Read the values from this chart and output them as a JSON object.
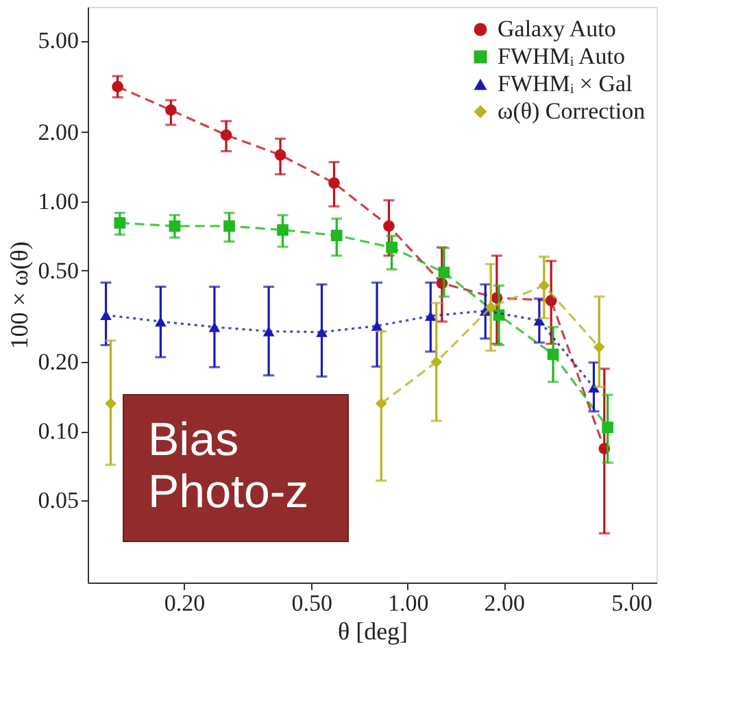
{
  "chart_data": {
    "type": "line",
    "xlabel": "θ [deg]",
    "ylabel": "100 × ω(θ)",
    "log": "xy",
    "grid": false,
    "legend": "top right",
    "xlim": [
      0.1,
      6
    ],
    "xticks": [
      {
        "value": 0.2,
        "label": "0.20"
      },
      {
        "value": 0.5,
        "label": "0.50"
      },
      {
        "value": 1,
        "label": "1.00"
      },
      {
        "value": 2,
        "label": "2.00"
      },
      {
        "value": 5,
        "label": "5.00"
      }
    ],
    "ylim": [
      0.022,
      7
    ],
    "yticks": [
      {
        "value": 0.05,
        "label": "0.05"
      },
      {
        "value": 0.1,
        "label": "0.10"
      },
      {
        "value": 0.2,
        "label": "0.20"
      },
      {
        "value": 0.5,
        "label": "0.50"
      },
      {
        "value": 1,
        "label": "1.00"
      },
      {
        "value": 2,
        "label": "2.00"
      },
      {
        "value": 5,
        "label": "5.00"
      }
    ],
    "series": [
      {
        "name": "Galaxy Auto",
        "color": "#c0141c",
        "marker": "circle",
        "line_style": "dashed",
        "x": [
          0.124,
          0.182,
          0.271,
          0.4,
          0.589,
          0.874,
          1.28,
          1.9,
          2.81,
          4.12
        ],
        "values": [
          3.15,
          2.49,
          1.94,
          1.59,
          1.2,
          0.78,
          0.44,
          0.38,
          0.37,
          0.084
        ],
        "errors": [
          [
            2.83,
            3.5
          ],
          [
            2.15,
            2.75
          ],
          [
            1.65,
            2.23
          ],
          [
            1.31,
            1.87
          ],
          [
            0.95,
            1.48
          ],
          [
            0.58,
            1.01
          ],
          [
            0.3,
            0.63
          ],
          [
            0.24,
            0.58
          ],
          [
            0.24,
            0.55
          ],
          [
            0.036,
            0.187
          ]
        ]
      },
      {
        "name": "FWHMᵢ Auto",
        "color": "#22b822",
        "marker": "square",
        "line_style": "dashed",
        "x": [
          0.126,
          0.187,
          0.277,
          0.407,
          0.6,
          0.892,
          1.3,
          1.93,
          2.85,
          4.22
        ],
        "values": [
          0.805,
          0.78,
          0.78,
          0.75,
          0.71,
          0.63,
          0.49,
          0.32,
          0.216,
          0.104
        ],
        "errors": [
          [
            0.716,
            0.89
          ],
          [
            0.695,
            0.87
          ],
          [
            0.668,
            0.89
          ],
          [
            0.634,
            0.87
          ],
          [
            0.58,
            0.84
          ],
          [
            0.506,
            0.707
          ],
          [
            0.385,
            0.626
          ],
          [
            0.237,
            0.43
          ],
          [
            0.164,
            0.284
          ],
          [
            0.073,
            0.144
          ]
        ]
      },
      {
        "name": "FWHMᵢ × Gal",
        "color": "#1a1ab4",
        "marker": "triangle",
        "line_style": "dotted",
        "x": [
          0.114,
          0.169,
          0.249,
          0.368,
          0.539,
          0.802,
          1.18,
          1.75,
          2.58,
          3.82
        ],
        "values": [
          0.32,
          0.3,
          0.284,
          0.272,
          0.27,
          0.287,
          0.317,
          0.334,
          0.303,
          0.155
        ],
        "errors": [
          [
            0.237,
            0.443
          ],
          [
            0.21,
            0.425
          ],
          [
            0.19,
            0.425
          ],
          [
            0.175,
            0.425
          ],
          [
            0.173,
            0.435
          ],
          [
            0.191,
            0.443
          ],
          [
            0.222,
            0.443
          ],
          [
            0.253,
            0.435
          ],
          [
            0.243,
            0.377
          ],
          [
            0.122,
            0.199
          ]
        ]
      },
      {
        "name": "ω(θ) Correction",
        "color": "#b8b41c",
        "marker": "diamond",
        "line_style": "dashed",
        "x": [
          0.118,
          0.17,
          0.25,
          0.37,
          0.54,
          0.827,
          1.23,
          1.82,
          2.67,
          3.97
        ],
        "values": [
          0.132,
          null,
          null,
          null,
          null,
          0.132,
          0.2,
          0.346,
          0.43,
          0.232
        ],
        "errors": [
          [
            0.0715,
            0.248
          ],
          null,
          null,
          null,
          null,
          [
            0.061,
            0.272
          ],
          [
            0.111,
            0.361
          ],
          [
            0.224,
            0.533
          ],
          [
            0.31,
            0.574
          ],
          [
            0.156,
            0.385
          ]
        ]
      }
    ],
    "annotations": [
      "Bias\nPhoto-z"
    ]
  }
}
